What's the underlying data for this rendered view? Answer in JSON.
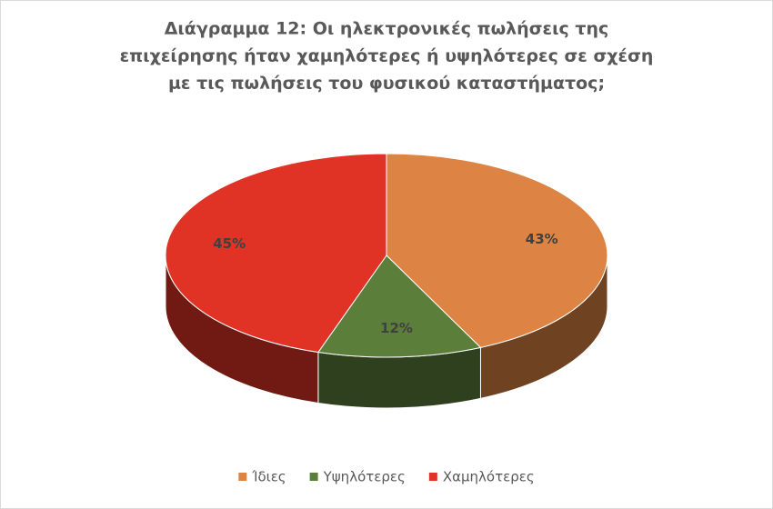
{
  "chart_data": {
    "type": "pie3d",
    "title": [
      "Διάγραμμα 12: Οι ηλεκτρονικές πωλήσεις της",
      "επιχείρησης ήταν χαμηλότερες ή υψηλότερες σε σχέση",
      "με τις πωλήσεις του φυσικού  καταστήματος;"
    ],
    "categories": [
      "Ίδιες",
      "Υψηλότερες",
      "Χαμηλότερες"
    ],
    "values": [
      43,
      12,
      45
    ],
    "value_labels": [
      "43%",
      "12%",
      "45%"
    ],
    "colors": [
      "#dd8444",
      "#5b7f3a",
      "#e03325"
    ],
    "legend": "bottom"
  }
}
